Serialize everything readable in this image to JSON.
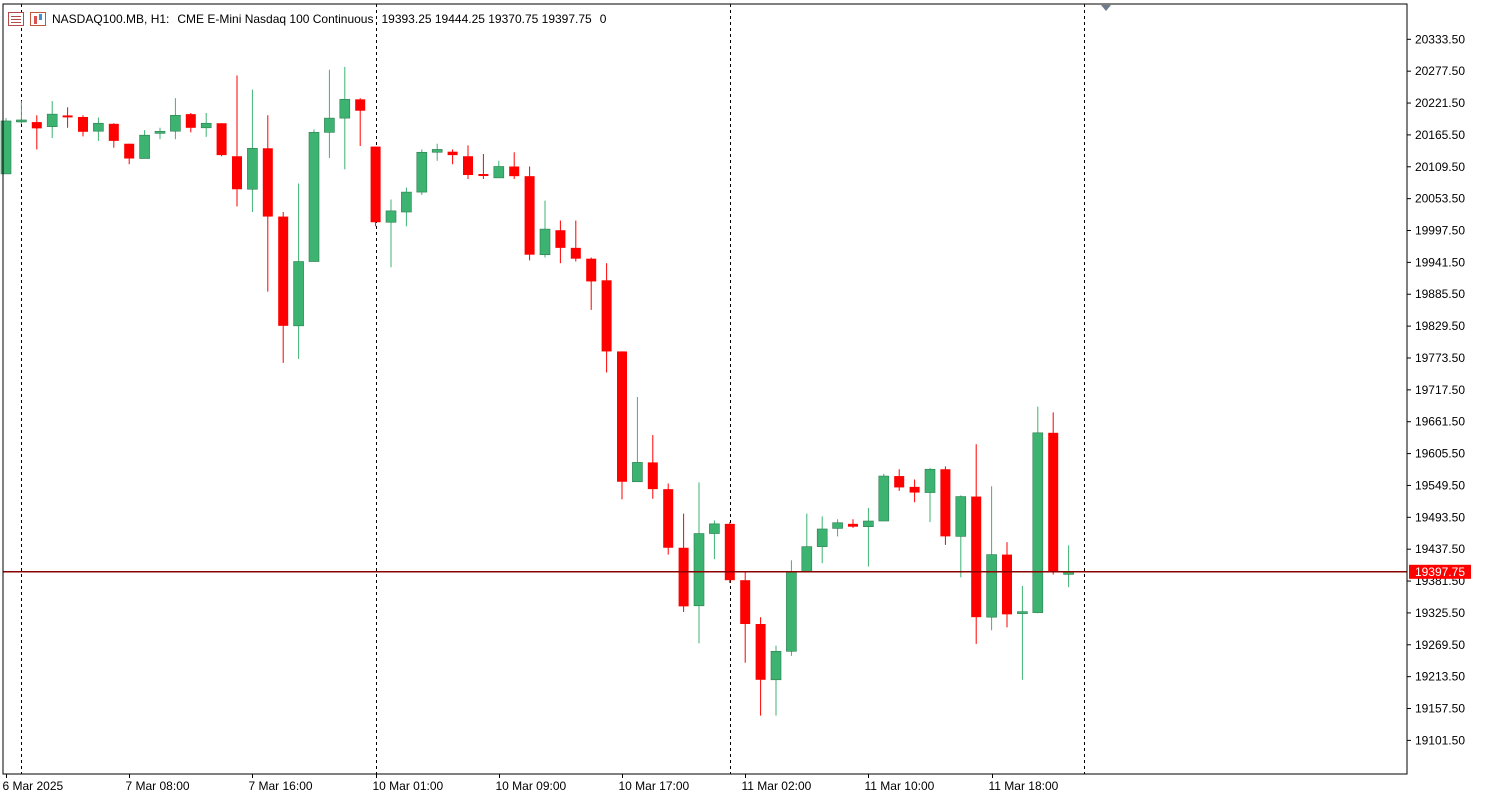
{
  "header": {
    "symbol": "NASDAQ100.MB, H1:",
    "description": "CME E-Mini Nasdaq 100 Continuous",
    "ohlc": "19393.25 19444.25 19370.75 19397.75",
    "volume": "0",
    "icons": [
      "list-icon",
      "one-click-trading-icon"
    ]
  },
  "colors": {
    "bull": "#3cb371",
    "bear": "#ff0000",
    "price_line": "#8b0000",
    "price_label_bg": "#ff0000",
    "grid": "#000000",
    "background": "#ffffff"
  },
  "chart_data": {
    "type": "candlestick",
    "timeframe": "H1",
    "ylim": [
      19060,
      20385
    ],
    "y_ticks": [
      20333.5,
      20277.5,
      20221.5,
      20165.5,
      20109.5,
      20053.5,
      19997.5,
      19941.5,
      19885.5,
      19829.5,
      19773.5,
      19717.5,
      19661.5,
      19605.5,
      19549.5,
      19493.5,
      19437.5,
      19381.5,
      19325.5,
      19269.5,
      19213.5,
      19157.5,
      19101.5
    ],
    "y_tick_labels": [
      "20333.50",
      "20277.50",
      "20221.50",
      "20165.50",
      "20109.50",
      "20053.50",
      "19997.50",
      "19941.50",
      "19885.50",
      "19829.50",
      "19773.50",
      "19717.50",
      "19661.50",
      "19605.50",
      "19549.50",
      "19493.50",
      "19437.50",
      "19381.50",
      "19325.50",
      "19269.50",
      "19213.50",
      "19157.50",
      "19101.50"
    ],
    "x_tick_labels": [
      {
        "label": "6 Mar 2025",
        "index": 0
      },
      {
        "label": "7 Mar 08:00",
        "index": 8
      },
      {
        "label": "7 Mar 16:00",
        "index": 16
      },
      {
        "label": "10 Mar 01:00",
        "index": 24
      },
      {
        "label": "10 Mar 09:00",
        "index": 32
      },
      {
        "label": "10 Mar 17:00",
        "index": 40
      },
      {
        "label": "11 Mar 02:00",
        "index": 48
      },
      {
        "label": "11 Mar 10:00",
        "index": 56
      },
      {
        "label": "11 Mar 18:00",
        "index": 64
      }
    ],
    "period_separators": [
      1,
      24,
      47,
      70
    ],
    "current_price": 19397.75,
    "current_price_label": "19397.75",
    "candles": [
      {
        "o": 20097,
        "h": 20195,
        "l": 20097,
        "c": 20190
      },
      {
        "o": 20190,
        "h": 20225,
        "l": 20185,
        "c": 20190
      },
      {
        "o": 20188,
        "h": 20200,
        "l": 20140,
        "c": 20177
      },
      {
        "o": 20180,
        "h": 20225,
        "l": 20160,
        "c": 20202
      },
      {
        "o": 20198,
        "h": 20214,
        "l": 20178,
        "c": 20197
      },
      {
        "o": 20197,
        "h": 20200,
        "l": 20163,
        "c": 20171
      },
      {
        "o": 20172,
        "h": 20196,
        "l": 20155,
        "c": 20186
      },
      {
        "o": 20185,
        "h": 20186,
        "l": 20143,
        "c": 20155
      },
      {
        "o": 20150,
        "h": 20150,
        "l": 20114,
        "c": 20124
      },
      {
        "o": 20124,
        "h": 20174,
        "l": 20124,
        "c": 20165
      },
      {
        "o": 20168,
        "h": 20178,
        "l": 20158,
        "c": 20170
      },
      {
        "o": 20172,
        "h": 20230,
        "l": 20158,
        "c": 20200
      },
      {
        "o": 20202,
        "h": 20204,
        "l": 20170,
        "c": 20178
      },
      {
        "o": 20178,
        "h": 20204,
        "l": 20162,
        "c": 20186
      },
      {
        "o": 20186,
        "h": 20186,
        "l": 20128,
        "c": 20130
      },
      {
        "o": 20128,
        "h": 20270,
        "l": 20040,
        "c": 20070
      },
      {
        "o": 20070,
        "h": 20245,
        "l": 20030,
        "c": 20142
      },
      {
        "o": 20142,
        "h": 20200,
        "l": 19890,
        "c": 20022
      },
      {
        "o": 20022,
        "h": 20030,
        "l": 19765,
        "c": 19830
      },
      {
        "o": 19830,
        "h": 20080,
        "l": 19772,
        "c": 19943
      },
      {
        "o": 19943,
        "h": 20175,
        "l": 19943,
        "c": 20170
      },
      {
        "o": 20170,
        "h": 20280,
        "l": 20125,
        "c": 20195
      },
      {
        "o": 20195,
        "h": 20285,
        "l": 20105,
        "c": 20228
      },
      {
        "o": 20228,
        "h": 20230,
        "l": 20146,
        "c": 20208
      },
      {
        "o": 20145,
        "h": 20145,
        "l": 20005,
        "c": 20012
      },
      {
        "o": 20012,
        "h": 20052,
        "l": 19933,
        "c": 20032
      },
      {
        "o": 20030,
        "h": 20073,
        "l": 20005,
        "c": 20065
      },
      {
        "o": 20065,
        "h": 20140,
        "l": 20060,
        "c": 20135
      },
      {
        "o": 20135,
        "h": 20150,
        "l": 20120,
        "c": 20140
      },
      {
        "o": 20136,
        "h": 20140,
        "l": 20114,
        "c": 20130
      },
      {
        "o": 20128,
        "h": 20147,
        "l": 20088,
        "c": 20095
      },
      {
        "o": 20095,
        "h": 20132,
        "l": 20088,
        "c": 20092
      },
      {
        "o": 20090,
        "h": 20120,
        "l": 20090,
        "c": 20110
      },
      {
        "o": 20110,
        "h": 20135,
        "l": 20088,
        "c": 20093
      },
      {
        "o": 20093,
        "h": 20110,
        "l": 19945,
        "c": 19955
      },
      {
        "o": 19955,
        "h": 20050,
        "l": 19950,
        "c": 20000
      },
      {
        "o": 19998,
        "h": 20015,
        "l": 19940,
        "c": 19967
      },
      {
        "o": 19967,
        "h": 20015,
        "l": 19943,
        "c": 19948
      },
      {
        "o": 19948,
        "h": 19950,
        "l": 19858,
        "c": 19908
      },
      {
        "o": 19910,
        "h": 19940,
        "l": 19748,
        "c": 19785
      },
      {
        "o": 19785,
        "h": 19785,
        "l": 19525,
        "c": 19556
      },
      {
        "o": 19556,
        "h": 19705,
        "l": 19556,
        "c": 19590
      },
      {
        "o": 19590,
        "h": 19638,
        "l": 19526,
        "c": 19543
      },
      {
        "o": 19543,
        "h": 19553,
        "l": 19428,
        "c": 19440
      },
      {
        "o": 19440,
        "h": 19500,
        "l": 19327,
        "c": 19337
      },
      {
        "o": 19338,
        "h": 19555,
        "l": 19272,
        "c": 19465
      },
      {
        "o": 19465,
        "h": 19488,
        "l": 19420,
        "c": 19482
      },
      {
        "o": 19482,
        "h": 19485,
        "l": 19378,
        "c": 19383
      },
      {
        "o": 19383,
        "h": 19398,
        "l": 19238,
        "c": 19306
      },
      {
        "o": 19306,
        "h": 19318,
        "l": 19145,
        "c": 19208
      },
      {
        "o": 19208,
        "h": 19268,
        "l": 19145,
        "c": 19258
      },
      {
        "o": 19258,
        "h": 19418,
        "l": 19250,
        "c": 19398
      },
      {
        "o": 19398,
        "h": 19500,
        "l": 19398,
        "c": 19442
      },
      {
        "o": 19442,
        "h": 19495,
        "l": 19413,
        "c": 19473
      },
      {
        "o": 19474,
        "h": 19490,
        "l": 19460,
        "c": 19484
      },
      {
        "o": 19482,
        "h": 19490,
        "l": 19475,
        "c": 19477
      },
      {
        "o": 19477,
        "h": 19510,
        "l": 19407,
        "c": 19487
      },
      {
        "o": 19487,
        "h": 19570,
        "l": 19487,
        "c": 19566
      },
      {
        "o": 19566,
        "h": 19578,
        "l": 19540,
        "c": 19546
      },
      {
        "o": 19547,
        "h": 19560,
        "l": 19520,
        "c": 19537
      },
      {
        "o": 19537,
        "h": 19580,
        "l": 19485,
        "c": 19578
      },
      {
        "o": 19578,
        "h": 19583,
        "l": 19445,
        "c": 19460
      },
      {
        "o": 19460,
        "h": 19532,
        "l": 19388,
        "c": 19530
      },
      {
        "o": 19530,
        "h": 19622,
        "l": 19271,
        "c": 19318
      },
      {
        "o": 19318,
        "h": 19548,
        "l": 19295,
        "c": 19428
      },
      {
        "o": 19428,
        "h": 19450,
        "l": 19300,
        "c": 19323
      },
      {
        "o": 19323,
        "h": 19373,
        "l": 19208,
        "c": 19326
      },
      {
        "o": 19326,
        "h": 19688,
        "l": 19325,
        "c": 19642
      },
      {
        "o": 19642,
        "h": 19678,
        "l": 19393,
        "c": 19398
      },
      {
        "o": 19393.25,
        "h": 19444.25,
        "l": 19370.75,
        "c": 19397.75
      }
    ]
  }
}
